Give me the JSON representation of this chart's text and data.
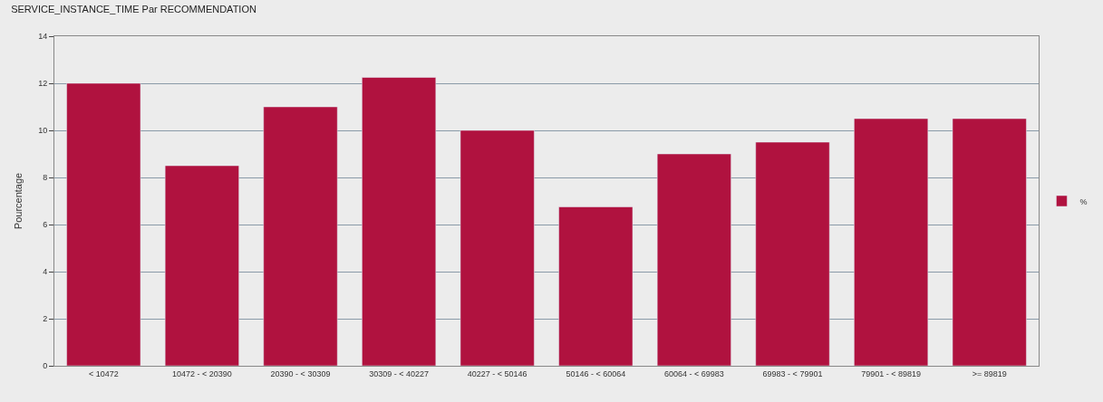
{
  "chart_data": {
    "type": "bar",
    "title": "SERVICE_INSTANCE_TIME Par RECOMMENDATION",
    "ylabel": "Pourcentage",
    "categories": [
      "< 10472",
      "10472 - < 20390",
      "20390 - < 30309",
      "30309 - < 40227",
      "40227 - < 50146",
      "50146 - < 60064",
      "60064 - < 69983",
      "69983 - < 79901",
      "79901 - < 89819",
      ">= 89819"
    ],
    "series": [
      {
        "name": "%",
        "color": "#b0123f",
        "values": [
          12,
          8.5,
          11,
          12.25,
          10,
          6.75,
          9,
          9.5,
          10.5,
          10.5
        ]
      }
    ],
    "ylim": [
      0,
      14
    ],
    "yticks": [
      0,
      2,
      4,
      6,
      8,
      10,
      12,
      14
    ],
    "grid": "y",
    "legend": "right"
  }
}
